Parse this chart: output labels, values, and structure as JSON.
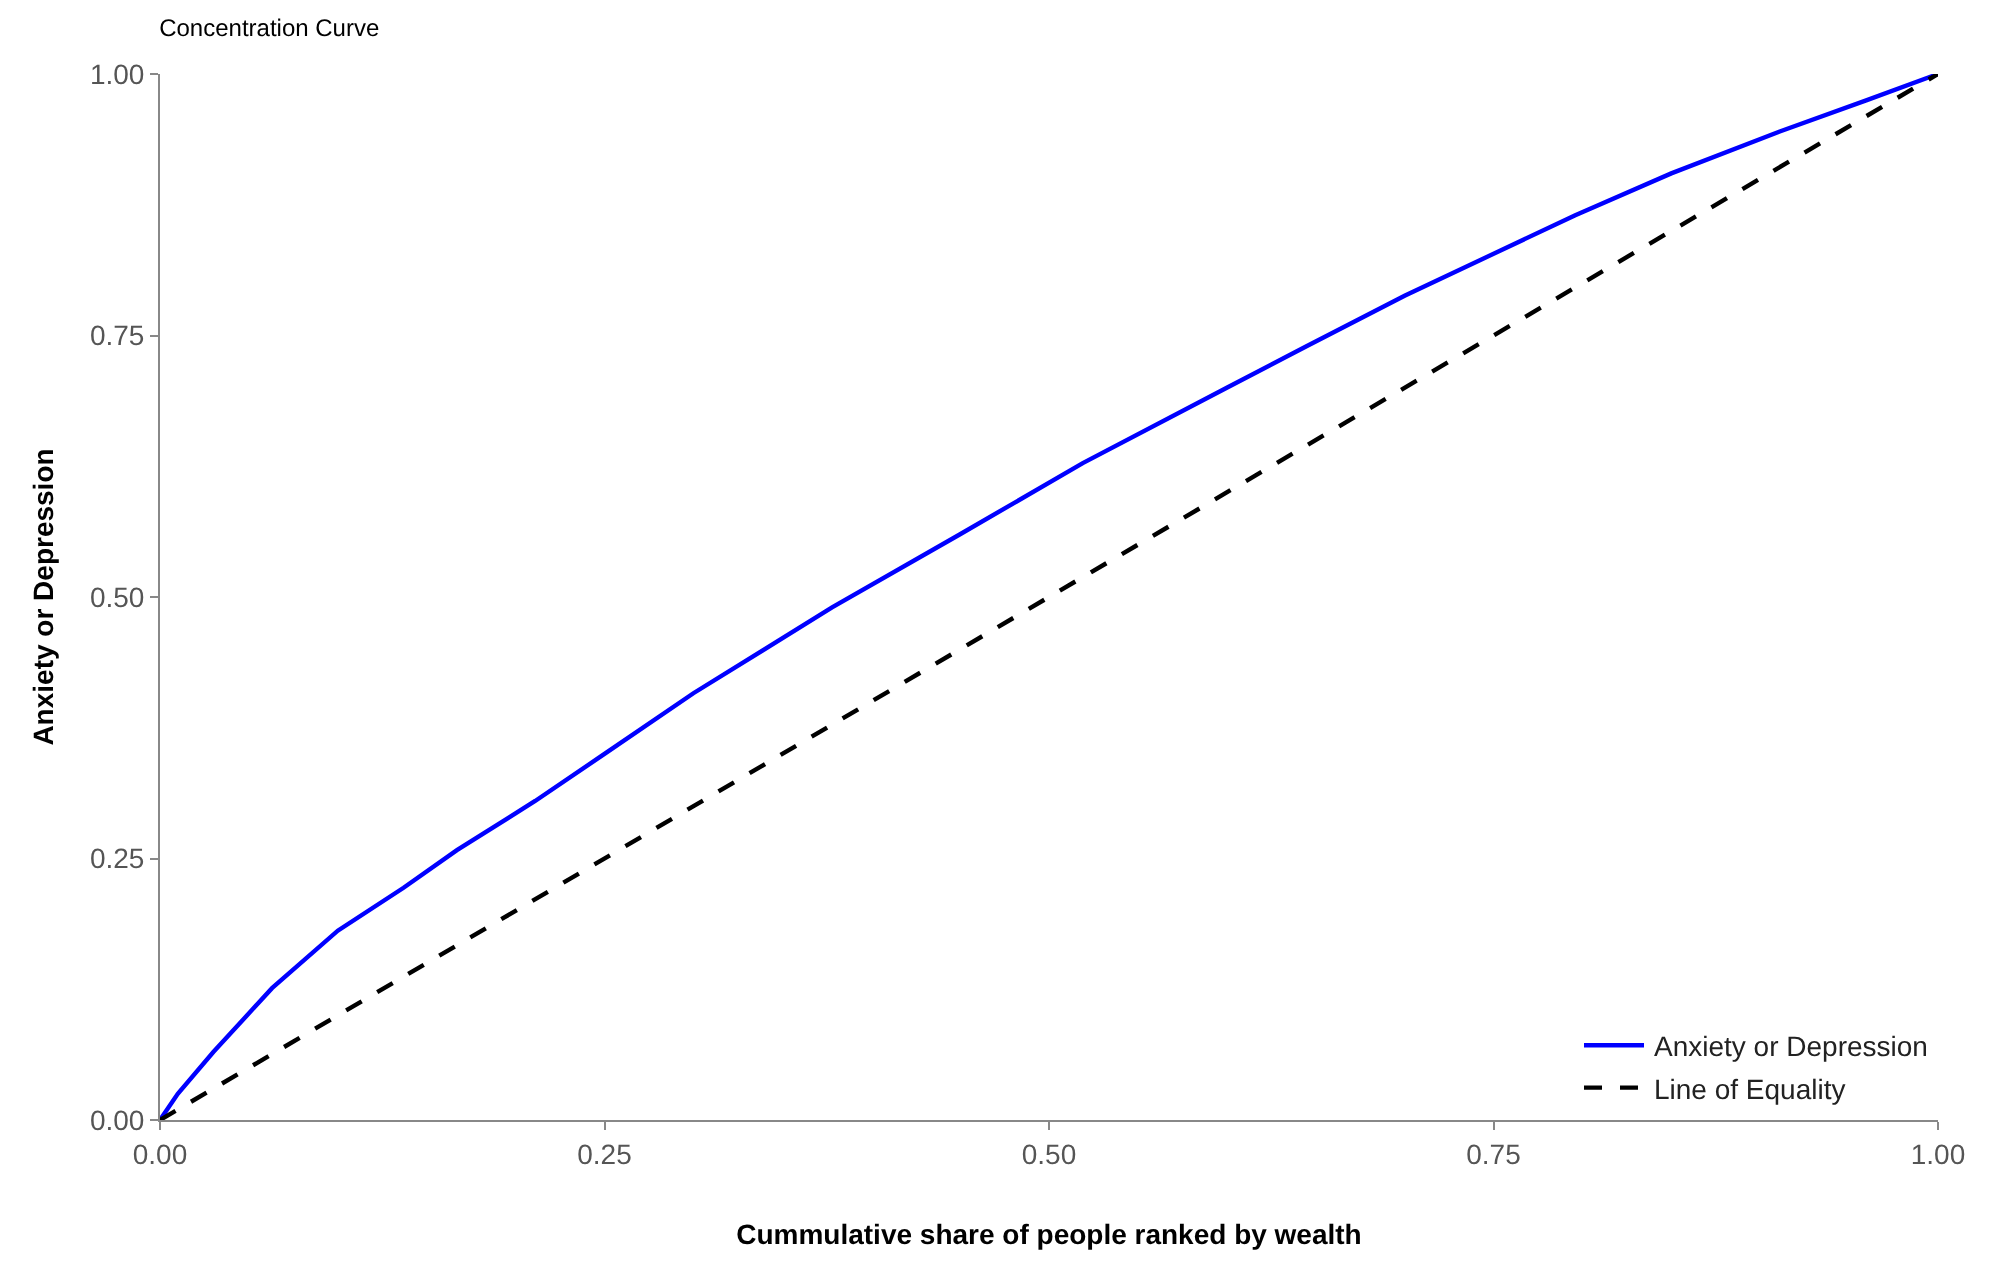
{
  "chart_data": {
    "type": "line",
    "title": "Concentration Curve",
    "xlabel": "Cummulative share of people ranked by wealth",
    "ylabel": "Anxiety or Depression",
    "xlim": [
      0,
      1
    ],
    "ylim": [
      0,
      1
    ],
    "xticks": [
      {
        "value": 0,
        "label": "0.00"
      },
      {
        "value": 0.25,
        "label": "0.25"
      },
      {
        "value": 0.5,
        "label": "0.50"
      },
      {
        "value": 0.75,
        "label": "0.75"
      },
      {
        "value": 1,
        "label": "1.00"
      }
    ],
    "yticks": [
      {
        "value": 0,
        "label": "0.00"
      },
      {
        "value": 0.25,
        "label": "0.25"
      },
      {
        "value": 0.5,
        "label": "0.50"
      },
      {
        "value": 0.75,
        "label": "0.75"
      },
      {
        "value": 1,
        "label": "1.00"
      }
    ],
    "grid": false,
    "legend": "bottom right",
    "marker": "none",
    "series": [
      {
        "name": "Anxiety or Depression",
        "color": "#0000ff",
        "line_style": "solid",
        "x": [
          0,
          0.01,
          0.03,
          0.063,
          0.1,
          0.137,
          0.167,
          0.211,
          0.25,
          0.3,
          0.378,
          0.45,
          0.519,
          0.6,
          0.644,
          0.7,
          0.796,
          0.85,
          0.911,
          0.96,
          1
        ],
        "values": [
          0,
          0.025,
          0.065,
          0.126,
          0.181,
          0.222,
          0.258,
          0.305,
          0.35,
          0.408,
          0.49,
          0.56,
          0.628,
          0.7,
          0.739,
          0.788,
          0.865,
          0.905,
          0.945,
          0.975,
          1
        ]
      },
      {
        "name": "Line of Equality",
        "color": "#000000",
        "line_style": "dashed",
        "x": [
          0,
          1
        ],
        "values": [
          0,
          1
        ]
      }
    ]
  }
}
